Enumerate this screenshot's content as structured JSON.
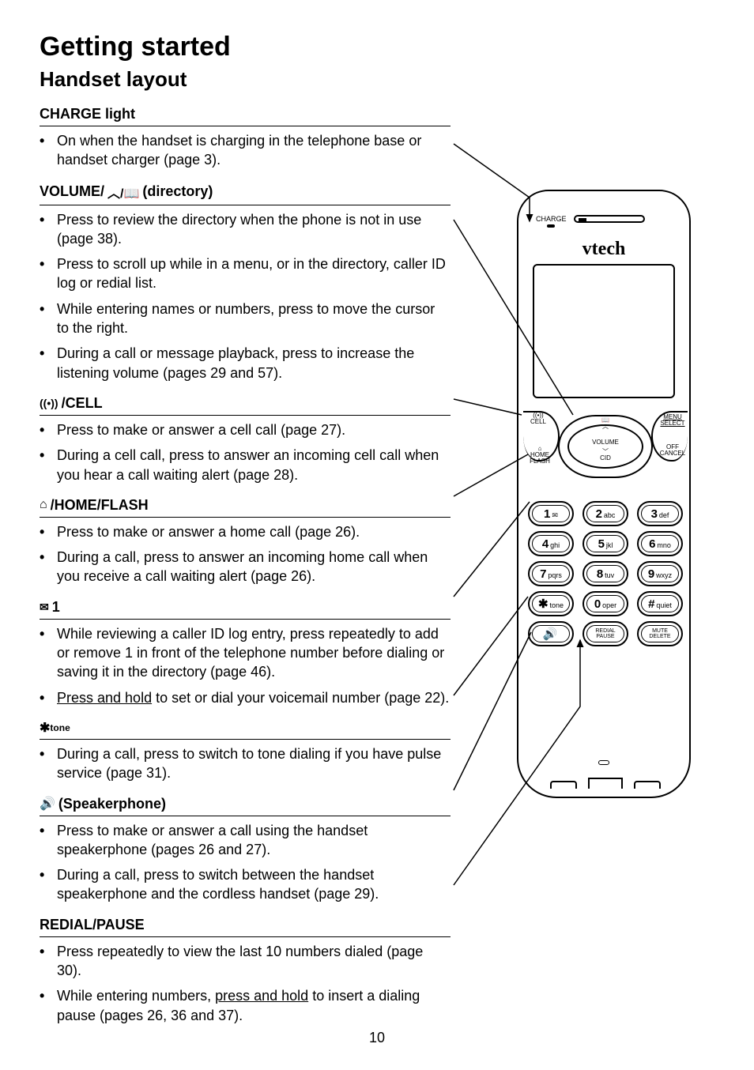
{
  "page_number": "10",
  "title": "Getting started",
  "subtitle": "Handset layout",
  "sections": [
    {
      "id": "charge",
      "heading": "CHARGE light",
      "icon": null,
      "bullets": [
        "On when the handset is charging in the telephone base or handset charger (page 3)."
      ]
    },
    {
      "id": "volume",
      "heading_pre": "VOLUME/",
      "heading_post": " (directory)",
      "icon": "up-book",
      "bullets": [
        "Press to review the directory when the phone is not in use (page 38).",
        "Press to scroll up while in a menu, or in the directory, caller ID log or redial list.",
        "While entering names or numbers, press to move the cursor to the right.",
        "During a call or message playback, press to increase the listening volume (pages 29 and 57)."
      ]
    },
    {
      "id": "cell",
      "heading": "/CELL",
      "icon": "cell",
      "bullets": [
        "Press to make or answer a cell call (page 27).",
        "During a cell call, press to answer an incoming cell call when you hear a call waiting alert (page 28)."
      ]
    },
    {
      "id": "home",
      "heading": "/HOME/FLASH",
      "icon": "home",
      "bullets": [
        "Press to make or answer a home call (page 26).",
        "During a call, press to answer an incoming home call when you receive a call waiting alert (page 26)."
      ]
    },
    {
      "id": "one",
      "heading": "1 ",
      "icon": "envelope",
      "bullets": [
        "While reviewing a caller ID log entry, press repeatedly to add or remove 1 in front of the telephone number before dialing or saving it in the directory (page 46).",
        "|UL|Press and hold|/UL| to set or dial your voicemail number (page 22)."
      ]
    },
    {
      "id": "tone",
      "heading": "",
      "icon": "star-tone",
      "bullets": [
        "During a call, press to switch to tone dialing if you have pulse service (page 31)."
      ]
    },
    {
      "id": "speaker",
      "heading": " (Speakerphone)",
      "icon": "speaker",
      "bullets": [
        "Press to make or answer a call using the handset speakerphone (pages 26 and 27).",
        "During a call, press to switch between the handset speakerphone and the cordless handset (page 29)."
      ]
    },
    {
      "id": "redial",
      "heading": "REDIAL/PAUSE",
      "icon": null,
      "bullets": [
        "Press repeatedly to view the last 10 numbers dialed (page 30).",
        "While entering numbers, |UL|press and hold|/UL| to insert a dialing pause (pages 26, 36 and 37)."
      ]
    }
  ],
  "phone": {
    "brand": "vtech",
    "charge_label": "CHARGE",
    "nav": {
      "top_icon": "📖",
      "top_arrow": "︿",
      "volume": "VOLUME",
      "bottom_arrow": "﹀",
      "cid": "CID",
      "left_top": "CELL",
      "left_icon": "((•))",
      "left_btn_top": "HOME",
      "left_btn_bot": "FLASH",
      "right_top": "MENU",
      "right_top2": "SELECT",
      "right_btn_top": "OFF",
      "right_btn_bot": "CANCEL"
    },
    "keys": [
      [
        {
          "n": "1",
          "l": "✉"
        },
        {
          "n": "2",
          "l": "abc"
        },
        {
          "n": "3",
          "l": "def"
        }
      ],
      [
        {
          "n": "4",
          "l": "ghi"
        },
        {
          "n": "5",
          "l": "jkl"
        },
        {
          "n": "6",
          "l": "mno"
        }
      ],
      [
        {
          "n": "7",
          "l": "pqrs"
        },
        {
          "n": "8",
          "l": "tuv"
        },
        {
          "n": "9",
          "l": "wxyz"
        }
      ],
      [
        {
          "n": "✱",
          "l": "tone"
        },
        {
          "n": "0",
          "l": "oper"
        },
        {
          "n": "#",
          "l": "quiet"
        }
      ],
      [
        {
          "n": "🔊",
          "l": ""
        },
        {
          "n": "",
          "l": "REDIAL PAUSE",
          "cls": "redial"
        },
        {
          "n": "",
          "l": "MUTE DELETE",
          "cls": "redial"
        }
      ]
    ]
  },
  "colors": {
    "text": "#000000",
    "bg": "#ffffff",
    "line": "#000000"
  }
}
